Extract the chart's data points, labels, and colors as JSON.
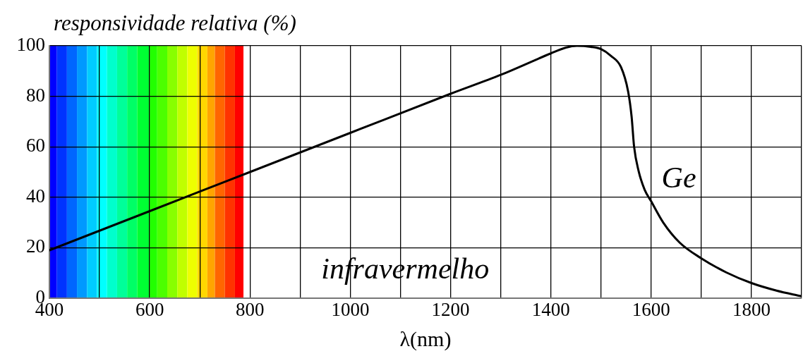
{
  "chart_data": {
    "type": "line",
    "xlabel": "λ(nm)",
    "ylabel": "responsividade relativa (%)",
    "annotations": [
      "infravermelho"
    ],
    "series": [
      {
        "name": "Ge",
        "color": "#000000",
        "x": [
          400,
          600,
          800,
          1000,
          1200,
          1300,
          1400,
          1430,
          1452,
          1480,
          1500,
          1520,
          1540,
          1554,
          1561,
          1566,
          1575,
          1587,
          1600,
          1624,
          1657,
          1700,
          1750,
          1800,
          1850,
          1890,
          1900
        ],
        "values": [
          19,
          34.5,
          50,
          65.5,
          81,
          88.5,
          97,
          99.3,
          100,
          99.6,
          98.7,
          96,
          91.5,
          82,
          72,
          60,
          50.4,
          43,
          38.4,
          30,
          22,
          15.8,
          10.2,
          6,
          3,
          1.2,
          0.8
        ]
      }
    ],
    "bands": [
      {
        "axis": "x",
        "from": 400,
        "to": 415,
        "color": "#0000ff"
      },
      {
        "axis": "x",
        "from": 415,
        "to": 435,
        "color": "#0033ff"
      },
      {
        "axis": "x",
        "from": 435,
        "to": 455,
        "color": "#0066ff"
      },
      {
        "axis": "x",
        "from": 455,
        "to": 475,
        "color": "#0099ff"
      },
      {
        "axis": "x",
        "from": 475,
        "to": 495,
        "color": "#00ccff"
      },
      {
        "axis": "x",
        "from": 495,
        "to": 515,
        "color": "#00ffff"
      },
      {
        "axis": "x",
        "from": 515,
        "to": 535,
        "color": "#00ffcc"
      },
      {
        "axis": "x",
        "from": 535,
        "to": 555,
        "color": "#00ff99"
      },
      {
        "axis": "x",
        "from": 555,
        "to": 575,
        "color": "#00ff66"
      },
      {
        "axis": "x",
        "from": 575,
        "to": 600,
        "color": "#00ff33"
      },
      {
        "axis": "x",
        "from": 600,
        "to": 615,
        "color": "#22ff00"
      },
      {
        "axis": "x",
        "from": 615,
        "to": 635,
        "color": "#4cff00"
      },
      {
        "axis": "x",
        "from": 635,
        "to": 655,
        "color": "#88ff00"
      },
      {
        "axis": "x",
        "from": 655,
        "to": 675,
        "color": "#c0ff00"
      },
      {
        "axis": "x",
        "from": 675,
        "to": 695,
        "color": "#eeff00"
      },
      {
        "axis": "x",
        "from": 695,
        "to": 715,
        "color": "#ffd700"
      },
      {
        "axis": "x",
        "from": 715,
        "to": 730,
        "color": "#ffa500"
      },
      {
        "axis": "x",
        "from": 730,
        "to": 750,
        "color": "#ff6600"
      },
      {
        "axis": "x",
        "from": 750,
        "to": 770,
        "color": "#ff3300"
      },
      {
        "axis": "x",
        "from": 770,
        "to": 787,
        "color": "#ff0000"
      }
    ],
    "xlim": [
      400,
      1900
    ],
    "xticks": [
      400,
      {
        "value": 500,
        "label": null
      },
      600,
      {
        "value": 700,
        "label": null
      },
      800,
      {
        "value": 900,
        "label": null
      },
      1000,
      {
        "value": 1100,
        "label": null
      },
      1200,
      {
        "value": 1300,
        "label": null
      },
      1400,
      {
        "value": 1500,
        "label": null
      },
      1600,
      {
        "value": 1700,
        "label": null
      },
      1800,
      {
        "value": 1900,
        "label": null
      }
    ],
    "ylim": [
      0,
      100
    ],
    "yticks": [
      0,
      20,
      40,
      60,
      80,
      100
    ],
    "grid": true,
    "legend": false,
    "marker": "none",
    "line_style": "solid"
  }
}
